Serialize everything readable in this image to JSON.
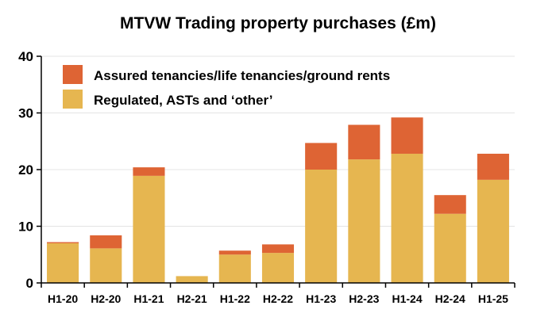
{
  "chart_data": {
    "type": "bar",
    "stacked": true,
    "title": "MTVW Trading property purchases (£m)",
    "xlabel": "",
    "ylabel": "",
    "ylim": [
      0,
      40
    ],
    "yticks": [
      0,
      10,
      20,
      30,
      40
    ],
    "grid": true,
    "legend_position": "top-left",
    "categories": [
      "H1-20",
      "H2-20",
      "H1-21",
      "H2-21",
      "H1-22",
      "H2-22",
      "H1-23",
      "H2-23",
      "H1-24",
      "H2-24",
      "H1-25"
    ],
    "series": [
      {
        "name": "Regulated, ASTs and ‘other’",
        "color": "#e6b650",
        "values": [
          7.0,
          6.1,
          18.9,
          1.2,
          5.0,
          5.3,
          20.0,
          21.8,
          22.8,
          12.2,
          18.2
        ]
      },
      {
        "name": "Assured tenancies/life tenancies/ground rents",
        "color": "#de6434",
        "values": [
          0.2,
          2.3,
          1.5,
          0.0,
          0.7,
          1.5,
          4.7,
          6.1,
          6.4,
          3.3,
          4.6
        ]
      }
    ]
  }
}
